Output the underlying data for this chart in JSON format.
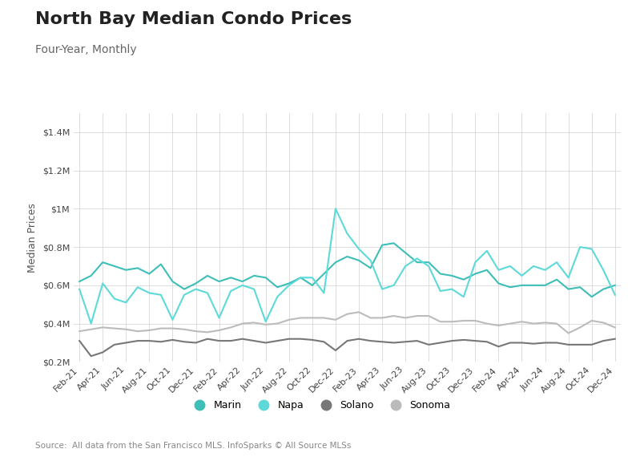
{
  "title": "North Bay Median Condo Prices",
  "subtitle": "Four-Year, Monthly",
  "ylabel": "Median Prices",
  "source": "Source:  All data from the San Francisco MLS. InfoSparks © All Source MLSs",
  "background_color": "#ffffff",
  "plot_bg_color": "#ffffff",
  "grid_color": "#d0d0d0",
  "ylim": [
    200000,
    1500000
  ],
  "yticks": [
    200000,
    400000,
    600000,
    800000,
    1000000,
    1200000,
    1400000
  ],
  "ytick_labels": [
    "$0.2M",
    "$0.4M",
    "$0.6M",
    "$0.8M",
    "$1M",
    "$1.2M",
    "$1.4M"
  ],
  "series": {
    "Marin": {
      "color": "#3dbfb8",
      "linewidth": 1.5,
      "data": [
        620000,
        650000,
        720000,
        700000,
        680000,
        690000,
        660000,
        710000,
        620000,
        580000,
        610000,
        650000,
        620000,
        640000,
        620000,
        650000,
        640000,
        590000,
        610000,
        640000,
        600000,
        660000,
        720000,
        750000,
        730000,
        690000,
        810000,
        820000,
        770000,
        720000,
        720000,
        660000,
        650000,
        630000,
        660000,
        680000,
        610000,
        590000,
        600000,
        600000,
        600000,
        630000,
        580000,
        590000,
        540000,
        580000,
        600000
      ]
    },
    "Napa": {
      "color": "#5dd9d9",
      "linewidth": 1.5,
      "data": [
        580000,
        400000,
        610000,
        530000,
        510000,
        590000,
        560000,
        550000,
        420000,
        550000,
        580000,
        560000,
        430000,
        570000,
        600000,
        580000,
        410000,
        540000,
        600000,
        640000,
        640000,
        560000,
        1000000,
        870000,
        790000,
        730000,
        580000,
        600000,
        700000,
        740000,
        700000,
        570000,
        580000,
        540000,
        720000,
        780000,
        680000,
        700000,
        650000,
        700000,
        680000,
        720000,
        640000,
        800000,
        790000,
        680000,
        550000
      ]
    },
    "Solano": {
      "color": "#777777",
      "linewidth": 1.5,
      "data": [
        310000,
        230000,
        250000,
        290000,
        300000,
        310000,
        310000,
        305000,
        315000,
        305000,
        300000,
        320000,
        310000,
        310000,
        320000,
        310000,
        300000,
        310000,
        320000,
        320000,
        315000,
        305000,
        260000,
        310000,
        320000,
        310000,
        305000,
        300000,
        305000,
        310000,
        290000,
        300000,
        310000,
        315000,
        310000,
        305000,
        280000,
        300000,
        300000,
        295000,
        300000,
        300000,
        290000,
        290000,
        290000,
        310000,
        320000
      ]
    },
    "Sonoma": {
      "color": "#bbbbbb",
      "linewidth": 1.5,
      "data": [
        360000,
        370000,
        380000,
        375000,
        370000,
        360000,
        365000,
        375000,
        375000,
        370000,
        360000,
        355000,
        365000,
        380000,
        400000,
        405000,
        395000,
        400000,
        420000,
        430000,
        430000,
        430000,
        420000,
        450000,
        460000,
        430000,
        430000,
        440000,
        430000,
        440000,
        440000,
        410000,
        410000,
        415000,
        415000,
        400000,
        390000,
        400000,
        410000,
        400000,
        405000,
        400000,
        350000,
        380000,
        415000,
        405000,
        380000
      ]
    }
  },
  "x_labels": [
    "Feb-21",
    "Apr-21",
    "Jun-21",
    "Aug-21",
    "Oct-21",
    "Dec-21",
    "Feb-22",
    "Apr-22",
    "Jun-22",
    "Aug-22",
    "Oct-22",
    "Dec-22",
    "Feb-23",
    "Apr-23",
    "Jun-23",
    "Aug-23",
    "Oct-23",
    "Dec-23",
    "Feb-24",
    "Apr-24",
    "Jun-24",
    "Aug-24",
    "Oct-24",
    "Dec-24"
  ],
  "x_label_indices": [
    0,
    2,
    4,
    6,
    8,
    10,
    12,
    14,
    16,
    18,
    20,
    22,
    24,
    26,
    28,
    30,
    32,
    34,
    36,
    38,
    40,
    42,
    44,
    46
  ],
  "title_fontsize": 16,
  "subtitle_fontsize": 10,
  "axis_label_fontsize": 9,
  "tick_fontsize": 8,
  "legend_fontsize": 9,
  "source_fontsize": 7.5,
  "legend_colors": [
    "#3dbfb8",
    "#5dd9d9",
    "#777777",
    "#bbbbbb"
  ],
  "legend_labels": [
    "Marin",
    "Napa",
    "Solano",
    "Sonoma"
  ]
}
